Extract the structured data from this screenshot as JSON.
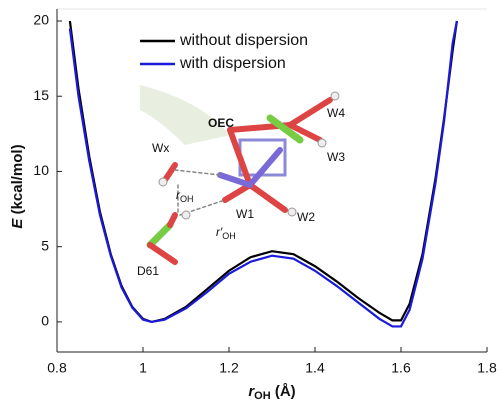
{
  "chart_data": {
    "type": "line",
    "xlabel": {
      "symbol": "r",
      "subscript": "OH",
      "unit": "(Å)"
    },
    "ylabel": {
      "symbol": "E",
      "unit": "(kcal/mol)"
    },
    "x": [
      0.83,
      0.85,
      0.875,
      0.9,
      0.925,
      0.95,
      0.975,
      1.0,
      1.02,
      1.05,
      1.1,
      1.15,
      1.2,
      1.25,
      1.3,
      1.35,
      1.4,
      1.45,
      1.5,
      1.55,
      1.58,
      1.6,
      1.62,
      1.65,
      1.68,
      1.7,
      1.72,
      1.73
    ],
    "series": [
      {
        "name": "without dispersion",
        "color": "#000000",
        "values": [
          20,
          15.5,
          11,
          7.3,
          4.5,
          2.4,
          1.0,
          0.2,
          0,
          0.2,
          1.0,
          2.2,
          3.4,
          4.3,
          4.7,
          4.5,
          3.7,
          2.7,
          1.6,
          0.6,
          0.1,
          0.1,
          1.2,
          4.5,
          9.5,
          13.5,
          18,
          20
        ]
      },
      {
        "name": "with dispersion",
        "color": "#1a1adb",
        "values": [
          19.5,
          15,
          10.7,
          7.1,
          4.4,
          2.3,
          0.95,
          0.15,
          0,
          0.15,
          0.9,
          2.0,
          3.2,
          4.0,
          4.4,
          4.2,
          3.4,
          2.4,
          1.3,
          0.2,
          -0.3,
          -0.3,
          0.8,
          4.2,
          9.2,
          13.3,
          18.5,
          20
        ]
      }
    ],
    "xlim": [
      0.8,
      1.8
    ],
    "xticks": [
      0.8,
      1,
      1.2,
      1.4,
      1.6,
      1.8
    ],
    "ylim": [
      -2,
      20
    ],
    "yticks": [
      0,
      5,
      10,
      15,
      20
    ],
    "legend": "upper-left",
    "annotations": {
      "oec": "OEC",
      "wx": "Wx",
      "w4": "W4",
      "w3": "W3",
      "w1": "W1",
      "w2": "W2",
      "d61": "D61",
      "r_oh": {
        "symbol": "r",
        "subscript": "OH"
      },
      "r_prime_oh": {
        "symbol": "r′",
        "subscript": "OH"
      }
    }
  }
}
